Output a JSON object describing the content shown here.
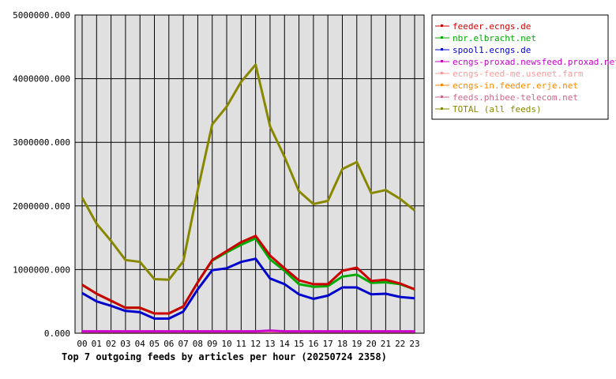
{
  "chart_data": {
    "type": "line",
    "title": "Top 7 outgoing feeds by articles per hour (20250724 2358)",
    "xlabel": "",
    "ylabel": "",
    "categories": [
      "00",
      "01",
      "02",
      "03",
      "04",
      "05",
      "06",
      "07",
      "08",
      "09",
      "10",
      "11",
      "12",
      "13",
      "14",
      "15",
      "16",
      "17",
      "18",
      "19",
      "20",
      "21",
      "22",
      "23"
    ],
    "y_tick_labels": [
      "0.000",
      "1000000.000",
      "2000000.000",
      "3000000.000",
      "4000000.000",
      "5000000.000"
    ],
    "ylim": [
      0,
      5000000
    ],
    "grid": true,
    "legend_position": "right",
    "series": [
      {
        "name": "feeder.ecngs.de",
        "color": "#cc0000",
        "values": [
          760000,
          620000,
          510000,
          400000,
          400000,
          310000,
          310000,
          420000,
          800000,
          1150000,
          1290000,
          1430000,
          1530000,
          1220000,
          1020000,
          830000,
          770000,
          770000,
          980000,
          1030000,
          820000,
          840000,
          780000,
          690000
        ]
      },
      {
        "name": "nbr.elbracht.net",
        "color": "#00aa00",
        "values": [
          760000,
          620000,
          510000,
          400000,
          400000,
          310000,
          310000,
          420000,
          800000,
          1140000,
          1270000,
          1390000,
          1490000,
          1160000,
          980000,
          770000,
          730000,
          740000,
          890000,
          920000,
          790000,
          800000,
          770000,
          690000
        ]
      },
      {
        "name": "spool1.ecngs.de",
        "color": "#0000cc",
        "values": [
          630000,
          500000,
          430000,
          350000,
          330000,
          230000,
          230000,
          340000,
          690000,
          990000,
          1020000,
          1120000,
          1170000,
          860000,
          770000,
          610000,
          540000,
          590000,
          720000,
          720000,
          610000,
          620000,
          570000,
          550000
        ]
      },
      {
        "name": "ecngs-proxad.newsfeed.proxad.net",
        "color": "#cc00cc",
        "values": [
          30000,
          30000,
          30000,
          30000,
          30000,
          30000,
          30000,
          30000,
          30000,
          30000,
          30000,
          30000,
          30000,
          40000,
          30000,
          30000,
          30000,
          30000,
          30000,
          30000,
          30000,
          30000,
          30000,
          30000
        ]
      },
      {
        "name": "ecngs-feed-me.usenet.farm",
        "color": "#ff9999",
        "values": [
          20000,
          20000,
          20000,
          20000,
          20000,
          20000,
          20000,
          20000,
          20000,
          20000,
          20000,
          20000,
          20000,
          20000,
          20000,
          20000,
          20000,
          20000,
          20000,
          20000,
          20000,
          20000,
          20000,
          20000
        ]
      },
      {
        "name": "ecngs-in.feeder.erje.net",
        "color": "#ff8800",
        "values": [
          15000,
          15000,
          15000,
          15000,
          15000,
          15000,
          15000,
          15000,
          15000,
          15000,
          15000,
          15000,
          15000,
          15000,
          15000,
          15000,
          15000,
          15000,
          15000,
          15000,
          15000,
          15000,
          15000,
          15000
        ]
      },
      {
        "name": "feeds.phibee-telecom.net",
        "color": "#cc6688",
        "values": [
          10000,
          10000,
          10000,
          10000,
          10000,
          10000,
          10000,
          10000,
          10000,
          10000,
          10000,
          10000,
          10000,
          10000,
          10000,
          10000,
          10000,
          10000,
          10000,
          10000,
          10000,
          10000,
          10000,
          10000
        ]
      },
      {
        "name": "TOTAL (all feeds)",
        "color": "#888800",
        "values": [
          2130000,
          1720000,
          1450000,
          1150000,
          1120000,
          850000,
          840000,
          1130000,
          2250000,
          3280000,
          3560000,
          3950000,
          4220000,
          3250000,
          2770000,
          2230000,
          2030000,
          2080000,
          2580000,
          2690000,
          2200000,
          2250000,
          2110000,
          1930000
        ]
      }
    ]
  }
}
